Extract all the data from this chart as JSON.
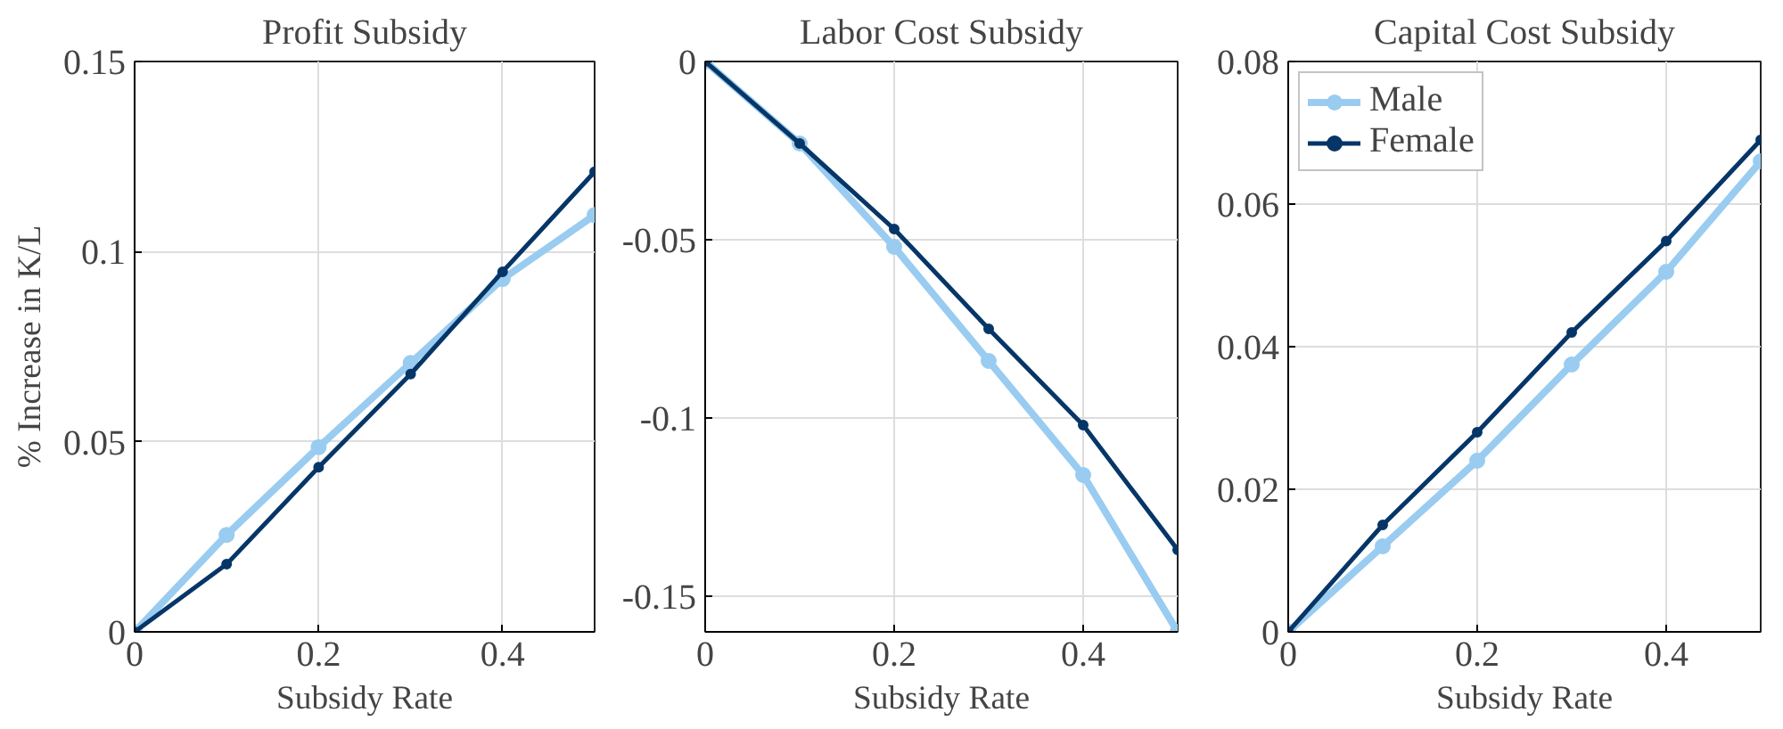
{
  "chart_data": [
    {
      "type": "line",
      "title": "Profit Subsidy",
      "xlabel": "Subsidy Rate",
      "ylabel": "% Increase in K/L",
      "x": [
        0,
        0.1,
        0.2,
        0.3,
        0.4,
        0.5
      ],
      "xlim": [
        0,
        0.5
      ],
      "xticks": [
        0,
        0.2,
        0.4
      ],
      "ylim": [
        0,
        0.15
      ],
      "yticks": [
        0,
        0.05,
        0.1,
        0.15
      ],
      "grid": true,
      "marker": "circle",
      "line_style": "solid",
      "legend": false,
      "series": [
        {
          "color": "#99ccf0",
          "values": [
            0,
            0.0255,
            0.0486,
            0.0707,
            0.0928,
            0.1096
          ]
        },
        {
          "color": "#063668",
          "values": [
            0,
            0.0178,
            0.0433,
            0.0678,
            0.0947,
            0.121
          ]
        }
      ]
    },
    {
      "type": "line",
      "title": "Labor Cost Subsidy",
      "xlabel": "Subsidy Rate",
      "x": [
        0,
        0.1,
        0.2,
        0.3,
        0.4,
        0.5
      ],
      "xlim": [
        0,
        0.5
      ],
      "xticks": [
        0,
        0.2,
        0.4
      ],
      "ylim": [
        -0.16,
        0
      ],
      "yticks": [
        -0.15,
        -0.1,
        -0.05,
        0
      ],
      "grid": true,
      "marker": "circle",
      "line_style": "solid",
      "legend": false,
      "series": [
        {
          "color": "#99ccf0",
          "values": [
            0,
            -0.023,
            -0.052,
            -0.084,
            -0.116,
            -0.16
          ]
        },
        {
          "color": "#063668",
          "values": [
            0,
            -0.023,
            -0.047,
            -0.075,
            -0.102,
            -0.137
          ]
        }
      ]
    },
    {
      "type": "line",
      "title": "Capital Cost Subsidy",
      "xlabel": "Subsidy Rate",
      "x": [
        0,
        0.1,
        0.2,
        0.3,
        0.4,
        0.5
      ],
      "xlim": [
        0,
        0.5
      ],
      "xticks": [
        0,
        0.2,
        0.4
      ],
      "ylim": [
        0,
        0.08
      ],
      "yticks": [
        0,
        0.02,
        0.04,
        0.06,
        0.08
      ],
      "grid": true,
      "marker": "circle",
      "line_style": "solid",
      "legend": "top left",
      "series": [
        {
          "name": "Male",
          "color": "#99ccf0",
          "values": [
            0,
            0.012,
            0.024,
            0.0375,
            0.0505,
            0.066
          ]
        },
        {
          "name": "Female",
          "color": "#063668",
          "values": [
            0,
            0.015,
            0.028,
            0.042,
            0.0548,
            0.069
          ]
        }
      ]
    }
  ]
}
